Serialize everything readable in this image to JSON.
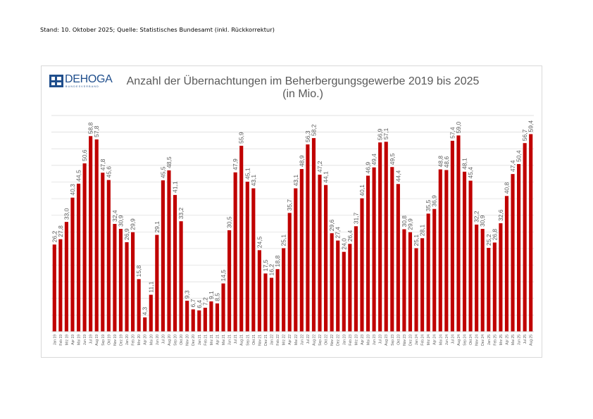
{
  "header": {
    "stand_text": "Stand: 10. Oktober 2025; Quelle: Statistisches Bundesamt (inkl. Rückkorrektur)"
  },
  "logo": {
    "name": "DEHOGA",
    "subtitle": "BUNDESVERBAND"
  },
  "colors": {
    "bar": "#c00000",
    "grid": "#d9d9d9",
    "text": "#595959",
    "logo": "#1f4e8c"
  },
  "chart_data": {
    "type": "bar",
    "title": "Anzahl der Übernachtungen im Beherbergungsgewerbe 2019 bis 2025",
    "subtitle": "(in Mio.)",
    "xlabel": "",
    "ylabel": "",
    "ylim": [
      0,
      65
    ],
    "grid": true,
    "grid_step": 5,
    "legend": "none",
    "categories": [
      "Jan 19",
      "Feb 19",
      "Mrz 19",
      "Apr 19",
      "Mai 19",
      "Jun 19",
      "Jul 19",
      "Aug 19",
      "Sep 19",
      "Okt 19",
      "Nov 19",
      "Dez 19",
      "Jan 20",
      "Feb 20",
      "Mrz 20",
      "Apr 20",
      "Mai 20",
      "Jun 20",
      "Jul 20",
      "Aug 20",
      "Sep 20",
      "Okt 20",
      "Nov 20",
      "Dez 20",
      "Jan 21",
      "Feb 21",
      "Mrz 21",
      "Apr 21",
      "Mai 21",
      "Jun 21",
      "Jul 21",
      "Aug 21",
      "Sep 21",
      "Okt 21",
      "Nov 21",
      "Dez 21",
      "Jan 22",
      "Feb 22",
      "Mrz 22",
      "Apr 22",
      "Mai 22",
      "Jun 22",
      "Jul 22",
      "Aug 22",
      "Sep 22",
      "Okt 22",
      "Nov 22",
      "Dez 22",
      "Jan 23",
      "Feb 23",
      "Mrz 23",
      "Apr 23",
      "Mai 23",
      "Jun 23",
      "Jul 23",
      "Aug 23",
      "Sep 23",
      "Okt 23",
      "Nov 23",
      "Dez 23",
      "Jan 24",
      "Feb 24",
      "Mrz 24",
      "Apr 24",
      "Mai 24",
      "Jun 24",
      "Jul 24",
      "Aug 24",
      "Sep 24",
      "Okt 24",
      "Nov 24",
      "Dez 24",
      "Jan 25",
      "Feb 25",
      "Mrz 25",
      "Apr 25",
      "Mai 25",
      "Jun 25",
      "Jul 25",
      "Aug 25"
    ],
    "values": [
      26.2,
      27.8,
      33.0,
      40.3,
      44.5,
      50.6,
      58.8,
      57.8,
      47.8,
      45.6,
      32.4,
      30.9,
      26.9,
      29.9,
      15.8,
      4.3,
      11.1,
      29.1,
      45.5,
      48.5,
      41.1,
      33.2,
      9.3,
      6.7,
      6.4,
      7.2,
      9.1,
      8.5,
      14.5,
      30.5,
      47.9,
      55.9,
      45.1,
      43.1,
      24.5,
      17.5,
      16.2,
      18.8,
      25.1,
      35.7,
      43.1,
      48.9,
      56.3,
      58.2,
      47.2,
      44.1,
      29.6,
      27.4,
      24.0,
      26.4,
      31.7,
      40.1,
      46.9,
      49.4,
      56.9,
      57.1,
      49.5,
      44.4,
      30.8,
      29.9,
      25.1,
      28.1,
      35.5,
      36.9,
      48.8,
      48.6,
      57.4,
      59.0,
      48.1,
      45.4,
      32.2,
      30.9,
      25.2,
      26.8,
      32.6,
      40.8,
      47.4,
      50.4,
      56.7,
      59.4
    ],
    "value_labels": [
      "26,2",
      "27,8",
      "33,0",
      "40,3",
      "44,5",
      "50,6",
      "58,8",
      "57,8",
      "47,8",
      "45,6",
      "32,4",
      "30,9",
      "26,9",
      "29,9",
      "15,8",
      "4,3",
      "11,1",
      "29,1",
      "45,5",
      "48,5",
      "41,1",
      "33,2",
      "9,3",
      "6,7",
      "6,4",
      "7,2",
      "9,1",
      "8,5",
      "14,5",
      "30,5",
      "47,9",
      "55,9",
      "45,1",
      "43,1",
      "24,5",
      "17,5",
      "16,2",
      "18,8",
      "25,1",
      "35,7",
      "43,1",
      "48,9",
      "56,3",
      "58,2",
      "47,2",
      "44,1",
      "29,6",
      "27,4",
      "24,0",
      "26,4",
      "31,7",
      "40,1",
      "46,9",
      "49,4",
      "56,9",
      "57,1",
      "49,5",
      "44,4",
      "30,8",
      "29,9",
      "25,1",
      "28,1",
      "35,5",
      "36,9",
      "48,8",
      "48,6",
      "57,4",
      "59,0",
      "48,1",
      "45,4",
      "32,2",
      "30,9",
      "25,2",
      "26,8",
      "32,6",
      "40,8",
      "47,4",
      "50,4",
      "56,7",
      "59,4"
    ]
  }
}
